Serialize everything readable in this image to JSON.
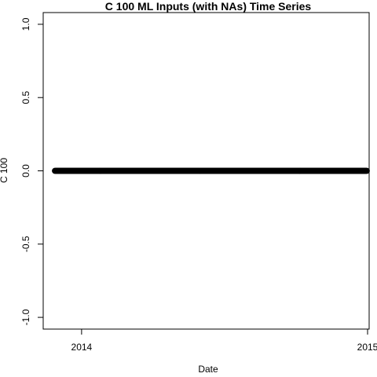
{
  "chart_data": {
    "type": "scatter",
    "title": "C 100 ML Inputs (with NAs) Time Series",
    "xlabel": "Date",
    "ylabel": "C 100",
    "x_range": [
      "2013-11-13",
      "2015-01-03"
    ],
    "ylim": [
      -1.08,
      1.08
    ],
    "x_ticks": [
      {
        "date": "2014-01-01",
        "label": "2014"
      },
      {
        "date": "2015-01-01",
        "label": "2015"
      }
    ],
    "y_ticks": [
      {
        "value": -1.0,
        "label": "-1.0"
      },
      {
        "value": -0.5,
        "label": "-0.5"
      },
      {
        "value": 0.0,
        "label": "0.0"
      },
      {
        "value": 0.5,
        "label": "0.5"
      },
      {
        "value": 1.0,
        "label": "1.0"
      }
    ],
    "series": [
      {
        "x_start": "2013-11-28",
        "x_end": "2014-12-31",
        "frequency": "daily",
        "value": 0,
        "color": "#000000"
      }
    ],
    "grid": false,
    "legend": "none"
  }
}
